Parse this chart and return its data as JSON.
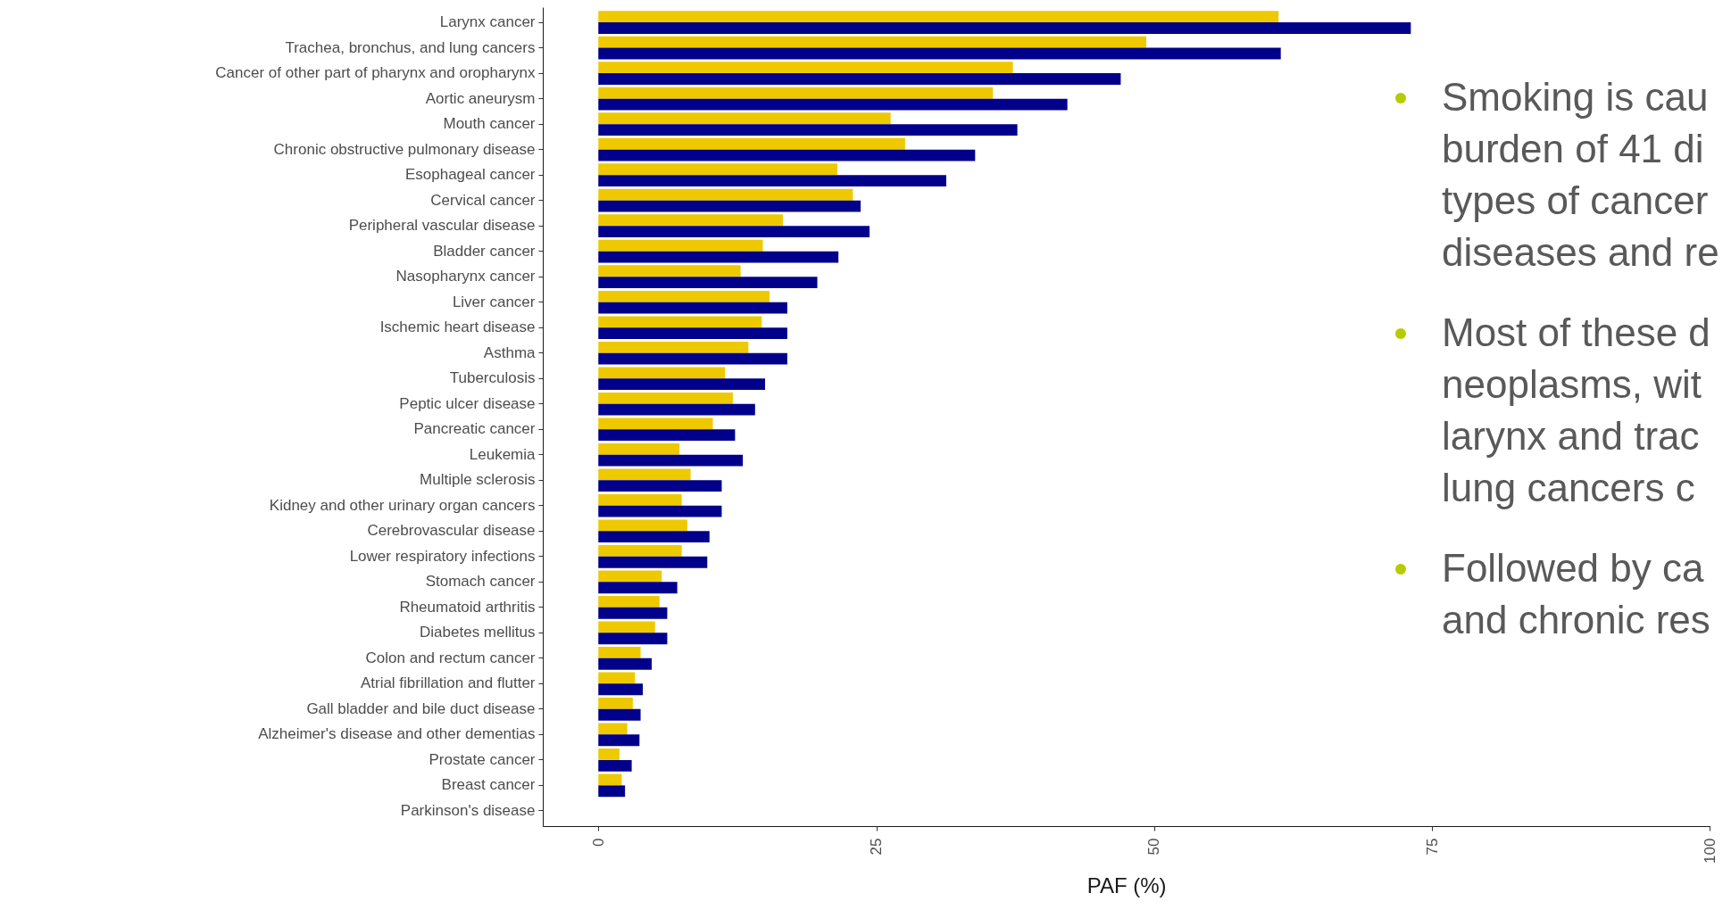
{
  "chart_data": {
    "type": "bar",
    "orientation": "horizontal",
    "xlabel": "PAF (%)",
    "categories": [
      "Larynx cancer",
      "Trachea, bronchus, and lung cancers",
      "Cancer of other part of pharynx and oropharynx",
      "Aortic aneurysm",
      "Mouth cancer",
      "Chronic obstructive pulmonary disease",
      "Esophageal cancer",
      "Cervical cancer",
      "Peripheral vascular disease",
      "Bladder cancer",
      "Nasopharynx cancer",
      "Liver cancer",
      "Ischemic heart disease",
      "Asthma",
      "Tuberculosis",
      "Peptic ulcer disease",
      "Pancreatic cancer",
      "Leukemia",
      "Multiple sclerosis",
      "Kidney and other urinary organ cancers",
      "Cerebrovascular disease",
      "Lower respiratory infections",
      "Stomach cancer",
      "Rheumatoid arthritis",
      "Diabetes mellitus",
      "Colon and rectum cancer",
      "Atrial fibrillation and flutter",
      "Gall bladder and bile duct disease",
      "Alzheimer's disease and other dementias",
      "Prostate cancer",
      "Breast cancer",
      "Parkinson's disease"
    ],
    "series": [
      {
        "color": "#eec900",
        "values": [
          61.2,
          49.3,
          37.3,
          35.5,
          26.3,
          27.6,
          21.5,
          22.9,
          16.6,
          14.8,
          12.8,
          15.4,
          14.7,
          13.5,
          11.4,
          12.1,
          10.3,
          7.3,
          8.3,
          7.5,
          8.0,
          7.5,
          5.7,
          5.5,
          5.1,
          3.8,
          3.3,
          3.1,
          2.6,
          1.9,
          2.1,
          null
        ]
      },
      {
        "color": "#00008b",
        "values": [
          73.1,
          61.4,
          47.0,
          42.2,
          37.7,
          33.9,
          31.3,
          23.6,
          24.4,
          21.6,
          19.7,
          17.0,
          17.0,
          17.0,
          15.0,
          14.1,
          12.3,
          13.0,
          11.1,
          11.1,
          10.0,
          9.8,
          7.1,
          6.2,
          6.2,
          4.8,
          4.0,
          3.8,
          3.7,
          3.0,
          2.4,
          null
        ]
      }
    ],
    "xlim": [
      -5,
      100
    ],
    "xticks": [
      0,
      25,
      50,
      75,
      100
    ],
    "grid": false,
    "annotations": [
      "Smoking is cau\nburden of 41 di\ntypes of cancer\ndiseases and re",
      "Most of these d\nneoplasms, wit\nlarynx and trac\nlung cancers c",
      "Followed by ca\nand chronic res"
    ]
  }
}
